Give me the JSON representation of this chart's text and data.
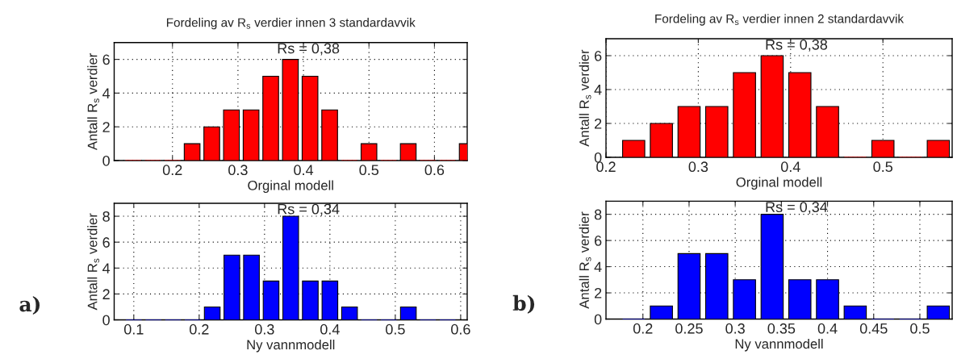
{
  "chart_data": [
    {
      "type": "bar",
      "title": "Fordeling av R$_{s}$ verdier innen 3 standardavvik",
      "xlabel": "Orginal modell",
      "ylabel": "Antall R$_{s}$ verdier",
      "color": "#ff0000",
      "x": [
        0.14,
        0.17,
        0.2,
        0.23,
        0.26,
        0.29,
        0.32,
        0.35,
        0.38,
        0.41,
        0.44,
        0.47,
        0.5,
        0.53,
        0.56,
        0.59,
        0.62,
        0.65
      ],
      "values": [
        0,
        0,
        0,
        1,
        2,
        3,
        3,
        5,
        6,
        5,
        3,
        0,
        1,
        0,
        1,
        0,
        0,
        1
      ],
      "xlim": [
        0.111,
        0.65
      ],
      "xticks": [
        0.2,
        0.3,
        0.4,
        0.5,
        0.6
      ],
      "ylim": [
        0,
        7
      ],
      "yticks": [
        0,
        2,
        4,
        6
      ],
      "grid": true,
      "annotations": [
        "Rs = 0,38"
      ]
    },
    {
      "type": "bar",
      "xlabel": "Ny vannmodell",
      "ylabel": "Antall R$_{s}$ verdier",
      "color": "#0000ff",
      "x": [
        0.1,
        0.13,
        0.16,
        0.19,
        0.22,
        0.25,
        0.28,
        0.31,
        0.34,
        0.37,
        0.4,
        0.43,
        0.46,
        0.49,
        0.52,
        0.55,
        0.58
      ],
      "values": [
        0,
        0,
        0,
        0,
        1,
        5,
        5,
        3,
        8,
        3,
        3,
        1,
        0,
        0,
        1,
        0,
        0
      ],
      "xlim": [
        0.07,
        0.61
      ],
      "xticks": [
        0.1,
        0.2,
        0.3,
        0.4,
        0.5,
        0.6
      ],
      "ylim": [
        0,
        9
      ],
      "yticks": [
        0,
        2,
        4,
        6,
        8
      ],
      "grid": true,
      "annotations": [
        "Rs = 0,34",
        "a)"
      ]
    },
    {
      "type": "bar",
      "title": "Fordeling av R$_{s}$ verdier innen 2 standardavvik",
      "xlabel": "Orginal modell",
      "ylabel": "Antall R$_{s}$ verdier",
      "color": "#ff0000",
      "x": [
        0.23,
        0.26,
        0.29,
        0.32,
        0.35,
        0.38,
        0.41,
        0.44,
        0.47,
        0.5,
        0.53,
        0.56
      ],
      "values": [
        1,
        2,
        3,
        3,
        5,
        6,
        5,
        3,
        0,
        1,
        0,
        1
      ],
      "xlim": [
        0.2,
        0.575
      ],
      "xticks": [
        0.2,
        0.3,
        0.4,
        0.5
      ],
      "ylim": [
        0,
        7
      ],
      "yticks": [
        0,
        2,
        4,
        6
      ],
      "grid": true,
      "annotations": [
        "Rs = 0,38"
      ]
    },
    {
      "type": "bar",
      "xlabel": "Ny vannmodell",
      "ylabel": "Antall R$_{s}$ verdier",
      "color": "#0000ff",
      "x": [
        0.19,
        0.22,
        0.25,
        0.28,
        0.31,
        0.34,
        0.37,
        0.4,
        0.43,
        0.46,
        0.49,
        0.52
      ],
      "values": [
        0,
        1,
        5,
        5,
        3,
        8,
        3,
        3,
        1,
        0,
        0,
        1
      ],
      "xlim": [
        0.16,
        0.535
      ],
      "xticks": [
        0.2,
        0.25,
        0.3,
        0.35,
        0.4,
        0.45,
        0.5
      ],
      "ylim": [
        0,
        9
      ],
      "yticks": [
        0,
        2,
        4,
        6,
        8
      ],
      "grid": true,
      "annotations": [
        "Rs = 0,34",
        "b)"
      ]
    }
  ]
}
